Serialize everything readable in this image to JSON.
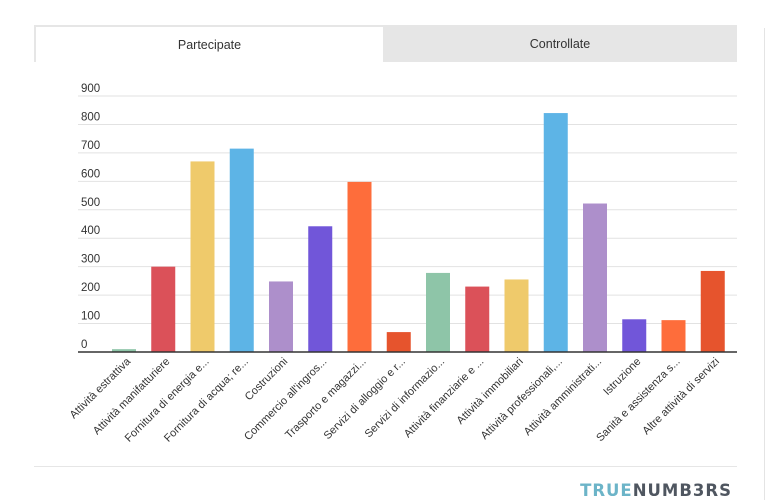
{
  "tabs": [
    {
      "label": "Partecipate",
      "active": true
    },
    {
      "label": "Controllate",
      "active": false
    }
  ],
  "brand": {
    "part1": "TRUE",
    "part2": "NUMB3RS"
  },
  "chart_data": {
    "type": "bar",
    "title": "",
    "xlabel": "",
    "ylabel": "",
    "ylim": [
      0,
      900
    ],
    "yticks": [
      0,
      100,
      200,
      300,
      400,
      500,
      600,
      700,
      800,
      900
    ],
    "grid": true,
    "legend": "none",
    "categories": [
      "Attività estrattiva",
      "Attività manifatturiere",
      "Fornitura di energia e...",
      "Fornitura di acqua; re...",
      "Costruzioni",
      "Commercio all'ingros...",
      "Trasporto e magazzi...",
      "Servizi di alloggio e r...",
      "Servizi di informazio...",
      "Attività finanziarie e ...",
      "Attività immobiliari",
      "Attività professionali,...",
      "Attività amministrati...",
      "Istruzione",
      "Sanità e assistenza s...",
      "Altre attività di servizi"
    ],
    "values": [
      10,
      300,
      670,
      715,
      248,
      442,
      598,
      70,
      278,
      230,
      255,
      840,
      522,
      115,
      112,
      285
    ],
    "colors": [
      "#8ec5a8",
      "#db5159",
      "#efca6b",
      "#5db4e6",
      "#ad8fcb",
      "#7156d9",
      "#fe6d3b",
      "#e6542d",
      "#8ec5a8",
      "#db5159",
      "#efca6b",
      "#5db4e6",
      "#ad8fcb",
      "#7156d9",
      "#fe6d3b",
      "#e6542d"
    ]
  }
}
